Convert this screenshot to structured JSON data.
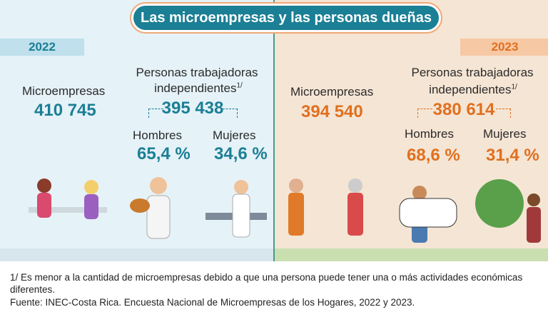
{
  "header": {
    "title": "Las microempresas y las personas dueñas"
  },
  "panels": [
    {
      "year": "2022",
      "microempresas_label": "Microempresas",
      "microempresas_value": "410 745",
      "independientes_line1": "Personas trabajadoras",
      "independientes_line2": "independientes",
      "footnote_mark": "1/",
      "independientes_value": "395 438",
      "hombres_label": "Hombres",
      "hombres_value": "65,4 %",
      "mujeres_label": "Mujeres",
      "mujeres_value": "34,6 %"
    },
    {
      "year": "2023",
      "microempresas_label": "Microempresas",
      "microempresas_value": "394 540",
      "independientes_line1": "Personas trabajadoras",
      "independientes_line2": "independientes",
      "footnote_mark": "1/",
      "independientes_value": "380 614",
      "hombres_label": "Hombres",
      "hombres_value": "68,6 %",
      "mujeres_label": "Mujeres",
      "mujeres_value": "31,4 %"
    }
  ],
  "footer": {
    "note": "1/ Es menor a la cantidad de microempresas debido a que una persona puede tener una o más actividades económicas diferentes.",
    "source": "Fuente: INEC-Costa Rica. Encuesta Nacional de Microempresas de los Hogares, 2022 y 2023."
  }
}
